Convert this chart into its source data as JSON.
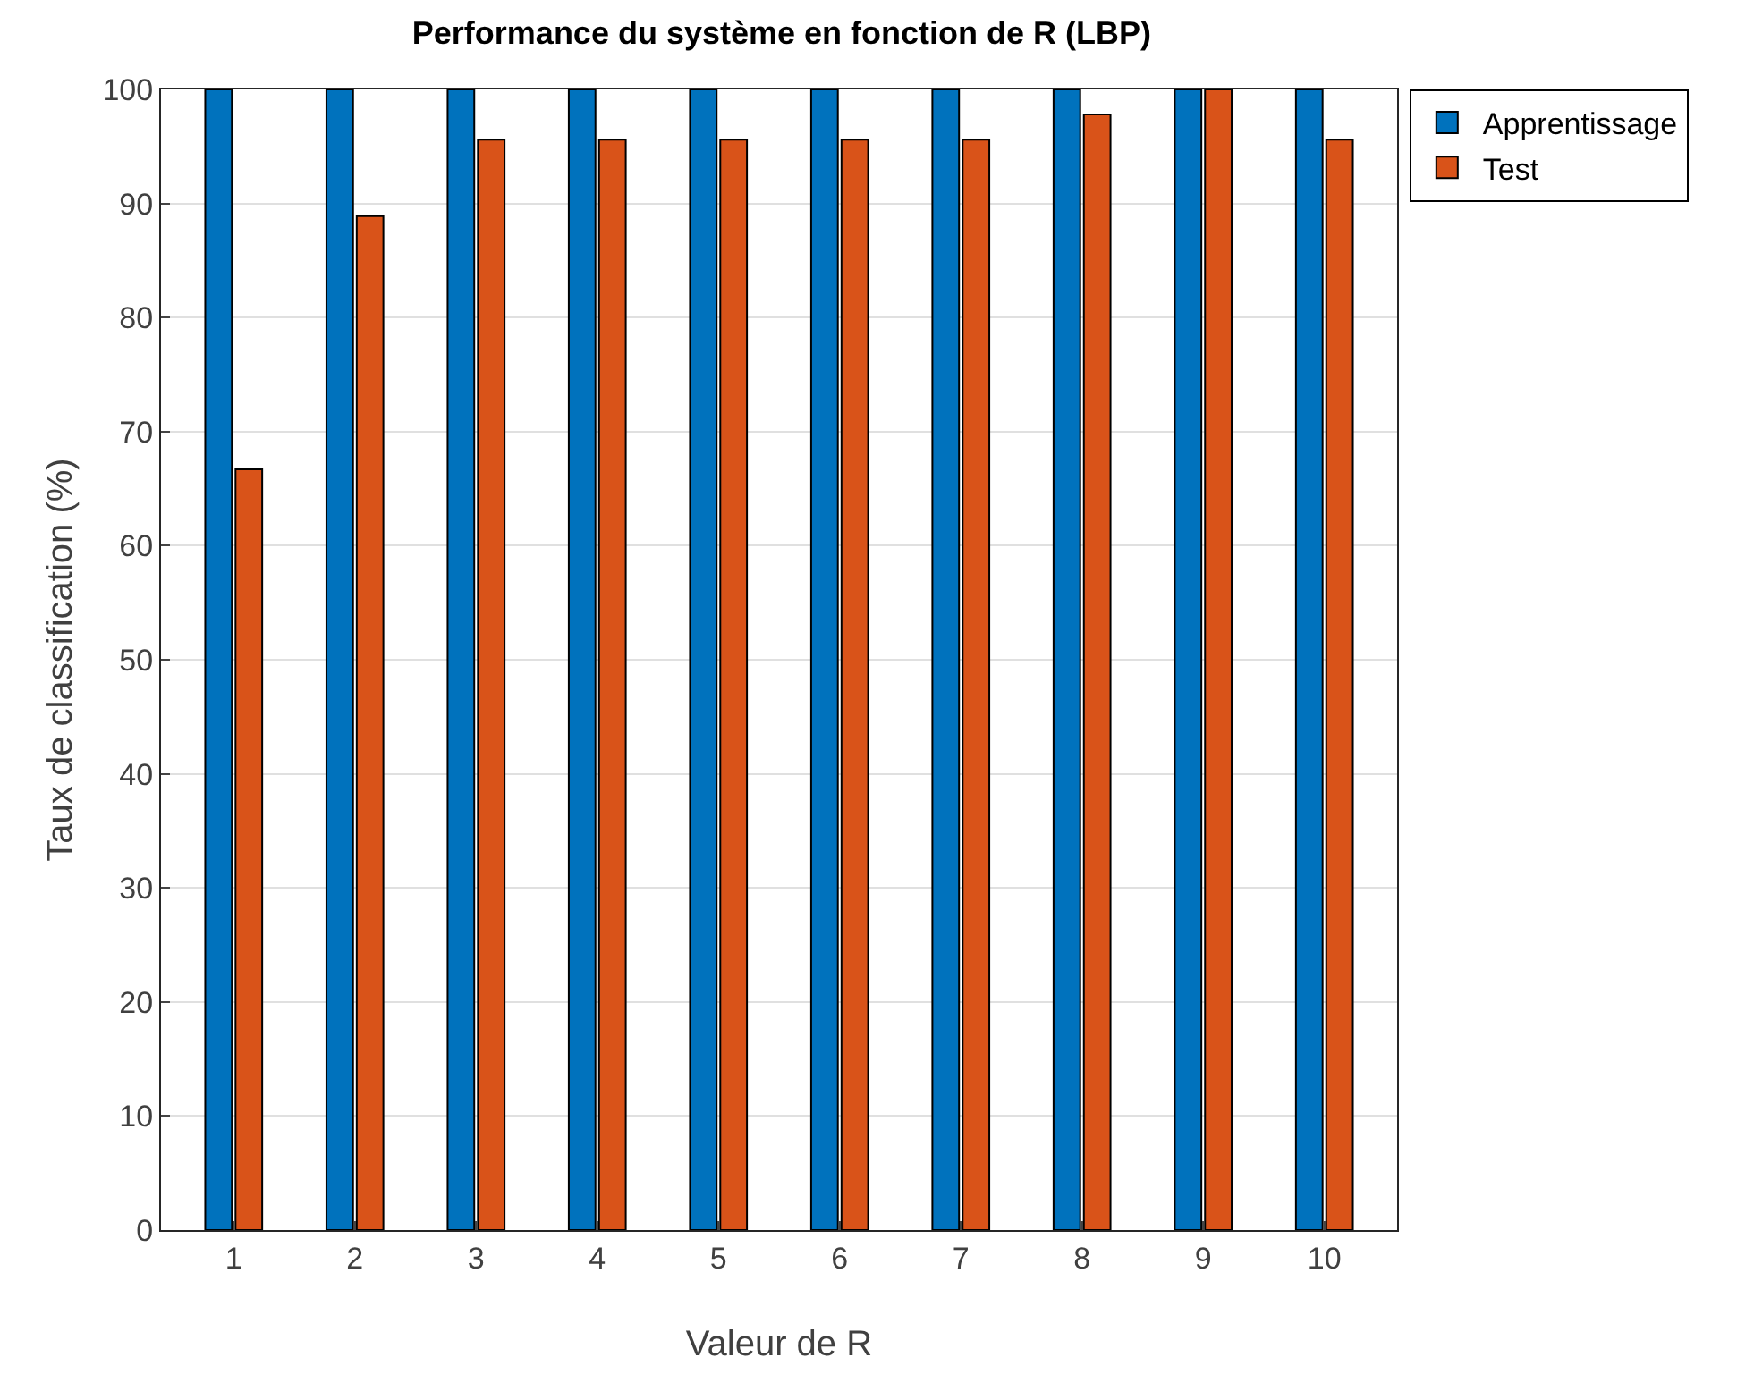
{
  "chart_data": {
    "type": "bar",
    "title": "Performance du système en fonction de R (LBP)",
    "xlabel": "Valeur de R",
    "ylabel": "Taux de classification (%)",
    "categories": [
      "1",
      "2",
      "3",
      "4",
      "5",
      "6",
      "7",
      "8",
      "9",
      "10"
    ],
    "series": [
      {
        "name": "Apprentissage",
        "color": "#0072bd",
        "values": [
          100,
          100,
          100,
          100,
          100,
          100,
          100,
          100,
          100,
          100
        ]
      },
      {
        "name": "Test",
        "color": "#d95319",
        "values": [
          66.7,
          88.9,
          95.6,
          95.6,
          95.6,
          95.6,
          95.6,
          97.8,
          100,
          95.6
        ]
      }
    ],
    "ylim": [
      0,
      100
    ],
    "yticks": [
      0,
      10,
      20,
      30,
      40,
      50,
      60,
      70,
      80,
      90,
      100
    ],
    "grid": "y",
    "legend": "top right"
  }
}
